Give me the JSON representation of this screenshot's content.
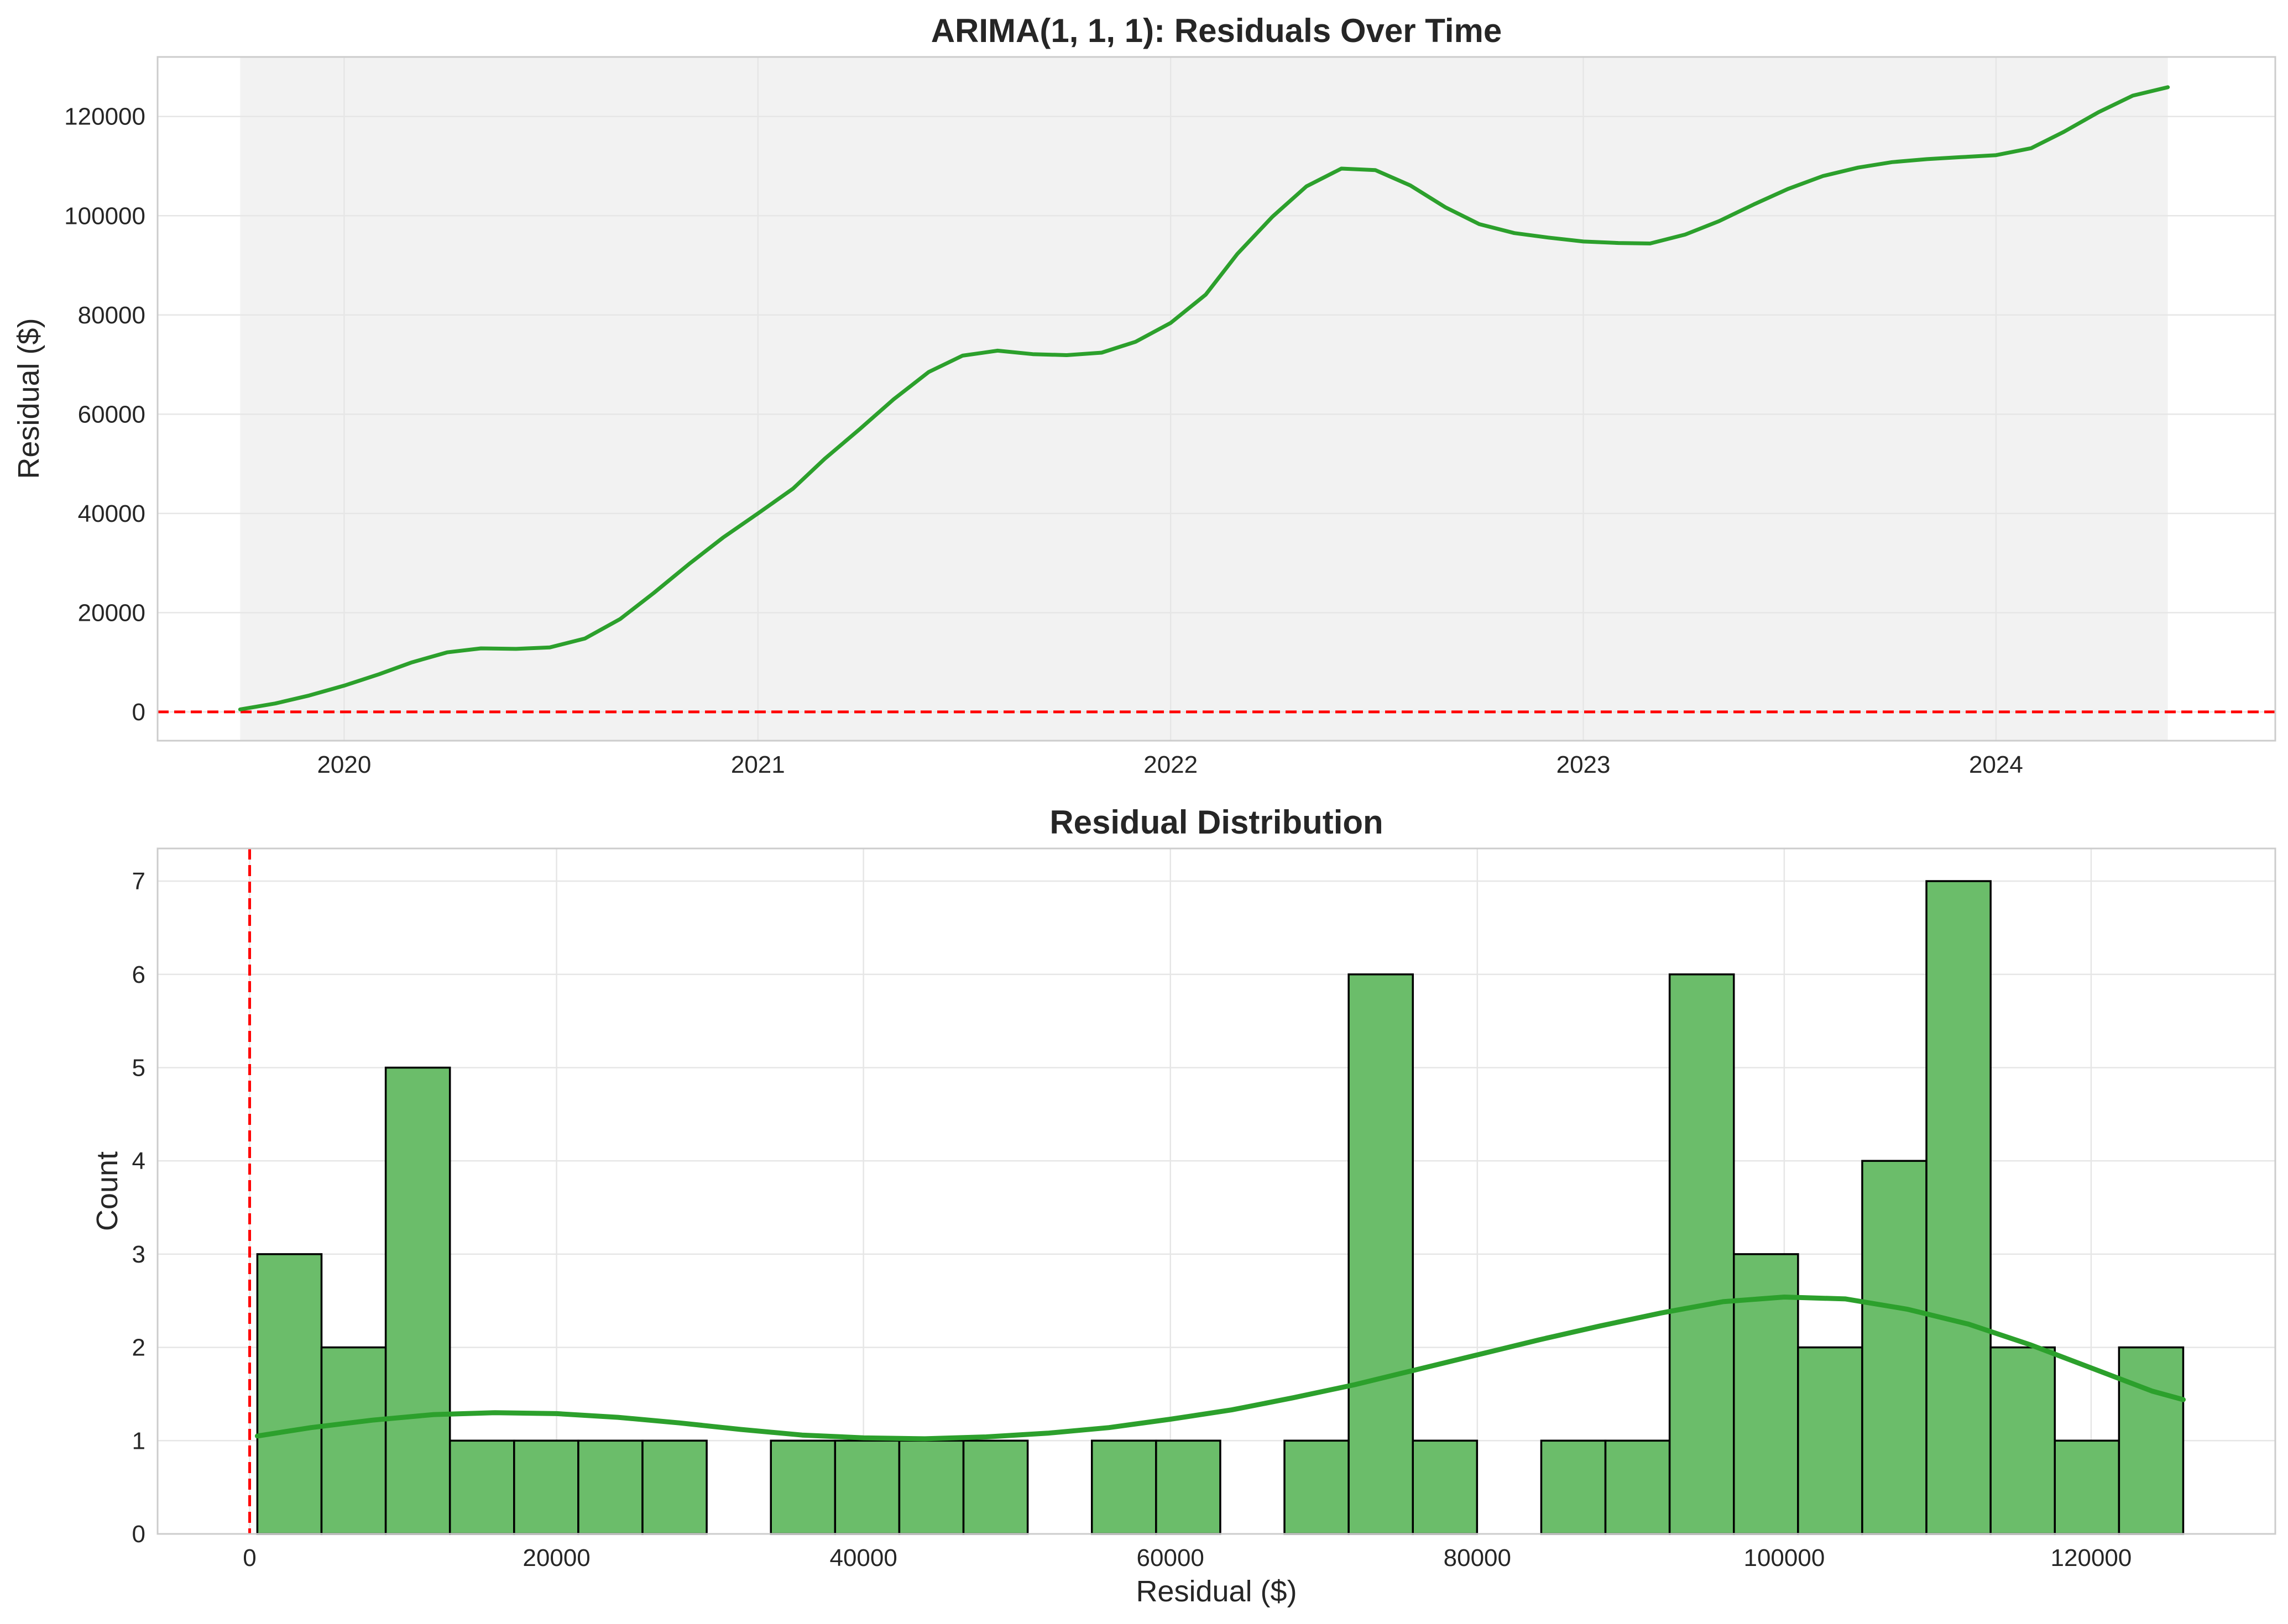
{
  "colors": {
    "series": "#2ca02c",
    "hist_fill": "#6bbd6a",
    "hist_edge": "#000000",
    "zero_line": "#ff0000",
    "shade": "#f2f2f2",
    "grid": "#e6e6e6",
    "spine": "#cccccc",
    "text": "#262626"
  },
  "chart_data": [
    {
      "type": "line",
      "title": "ARIMA(1, 1, 1): Residuals Over Time",
      "xlabel": "",
      "ylabel": "Residual ($)",
      "xlim": [
        "2019-07-20",
        "2024-09-04"
      ],
      "ylim": [
        -5800,
        132000
      ],
      "xticks": [
        "2020",
        "2021",
        "2022",
        "2023",
        "2024"
      ],
      "xtick_dates": [
        "2020-01-01",
        "2021-01-01",
        "2022-01-01",
        "2023-01-01",
        "2024-01-01"
      ],
      "yticks": [
        0,
        20000,
        40000,
        60000,
        80000,
        100000,
        120000
      ],
      "grid": true,
      "shaded_range": [
        "2019-10-01",
        "2024-06-01"
      ],
      "reference_line": {
        "axis": "y",
        "value": 0,
        "style": "dashed"
      },
      "series": [
        {
          "x": [
            "2019-10-01",
            "2019-11-01",
            "2019-12-01",
            "2020-01-01",
            "2020-02-01",
            "2020-03-01",
            "2020-04-01",
            "2020-05-01",
            "2020-06-01",
            "2020-07-01",
            "2020-08-01",
            "2020-09-01",
            "2020-10-01",
            "2020-11-01",
            "2020-12-01",
            "2021-01-01",
            "2021-02-01",
            "2021-03-01",
            "2021-04-01",
            "2021-05-01",
            "2021-06-01",
            "2021-07-01",
            "2021-08-01",
            "2021-09-01",
            "2021-10-01",
            "2021-11-01",
            "2021-12-01",
            "2022-01-01",
            "2022-02-01",
            "2022-03-01",
            "2022-04-01",
            "2022-05-01",
            "2022-06-01",
            "2022-07-01",
            "2022-08-01",
            "2022-09-01",
            "2022-10-01",
            "2022-11-01",
            "2022-12-01",
            "2023-01-01",
            "2023-02-01",
            "2023-03-01",
            "2023-04-01",
            "2023-05-01",
            "2023-06-01",
            "2023-07-01",
            "2023-08-01",
            "2023-09-01",
            "2023-10-01",
            "2023-11-01",
            "2023-12-01",
            "2024-01-01",
            "2024-02-01",
            "2024-03-01",
            "2024-04-01",
            "2024-05-01",
            "2024-06-01"
          ],
          "y": [
            500,
            1700,
            3300,
            5300,
            7600,
            10000,
            12000,
            12800,
            12700,
            13000,
            14800,
            18700,
            24000,
            29800,
            35100,
            40000,
            45000,
            51000,
            57000,
            63000,
            68500,
            71800,
            72800,
            72100,
            71900,
            72400,
            74600,
            78400,
            84100,
            92300,
            99800,
            105900,
            109500,
            109200,
            106100,
            101700,
            98300,
            96500,
            95600,
            94800,
            94500,
            94400,
            96200,
            98900,
            102300,
            105400,
            108000,
            109700,
            110800,
            111400,
            111800,
            112200,
            113600,
            116900,
            120900,
            124200,
            125900
          ]
        }
      ]
    },
    {
      "type": "bar",
      "title": "Residual Distribution",
      "xlabel": "Residual ($)",
      "ylabel": "Count",
      "xlim": [
        -6000,
        132000
      ],
      "ylim": [
        0,
        7.35
      ],
      "xticks": [
        0,
        20000,
        40000,
        60000,
        80000,
        100000,
        120000
      ],
      "yticks": [
        0,
        1,
        2,
        3,
        4,
        5,
        6,
        7
      ],
      "grid": true,
      "reference_line": {
        "axis": "x",
        "value": 0,
        "style": "dashed"
      },
      "bin_edges": [
        500,
        4683,
        8867,
        13050,
        17233,
        21417,
        25600,
        29783,
        33967,
        38150,
        42333,
        46517,
        50700,
        54883,
        59067,
        63250,
        67433,
        71617,
        75800,
        79983,
        84167,
        88350,
        92533,
        96717,
        100900,
        105083,
        109267,
        113450,
        117633,
        121817,
        126000
      ],
      "counts": [
        3,
        2,
        5,
        1,
        1,
        1,
        1,
        0,
        1,
        1,
        1,
        1,
        0,
        1,
        1,
        0,
        1,
        6,
        1,
        0,
        1,
        1,
        6,
        3,
        2,
        4,
        7,
        2,
        1,
        2
      ],
      "kde": {
        "x": [
          500,
          4000,
          8000,
          12000,
          16000,
          20000,
          24000,
          28000,
          32000,
          36000,
          40000,
          44000,
          48000,
          52000,
          56000,
          60000,
          64000,
          68000,
          72000,
          76000,
          80000,
          84000,
          88000,
          92000,
          96000,
          100000,
          104000,
          108000,
          112000,
          116000,
          120000,
          124000,
          126000
        ],
        "y": [
          1.05,
          1.14,
          1.22,
          1.28,
          1.3,
          1.29,
          1.25,
          1.19,
          1.12,
          1.06,
          1.03,
          1.02,
          1.04,
          1.08,
          1.14,
          1.23,
          1.33,
          1.46,
          1.6,
          1.76,
          1.92,
          2.08,
          2.23,
          2.37,
          2.49,
          2.54,
          2.52,
          2.41,
          2.25,
          2.03,
          1.78,
          1.53,
          1.44
        ]
      }
    }
  ]
}
